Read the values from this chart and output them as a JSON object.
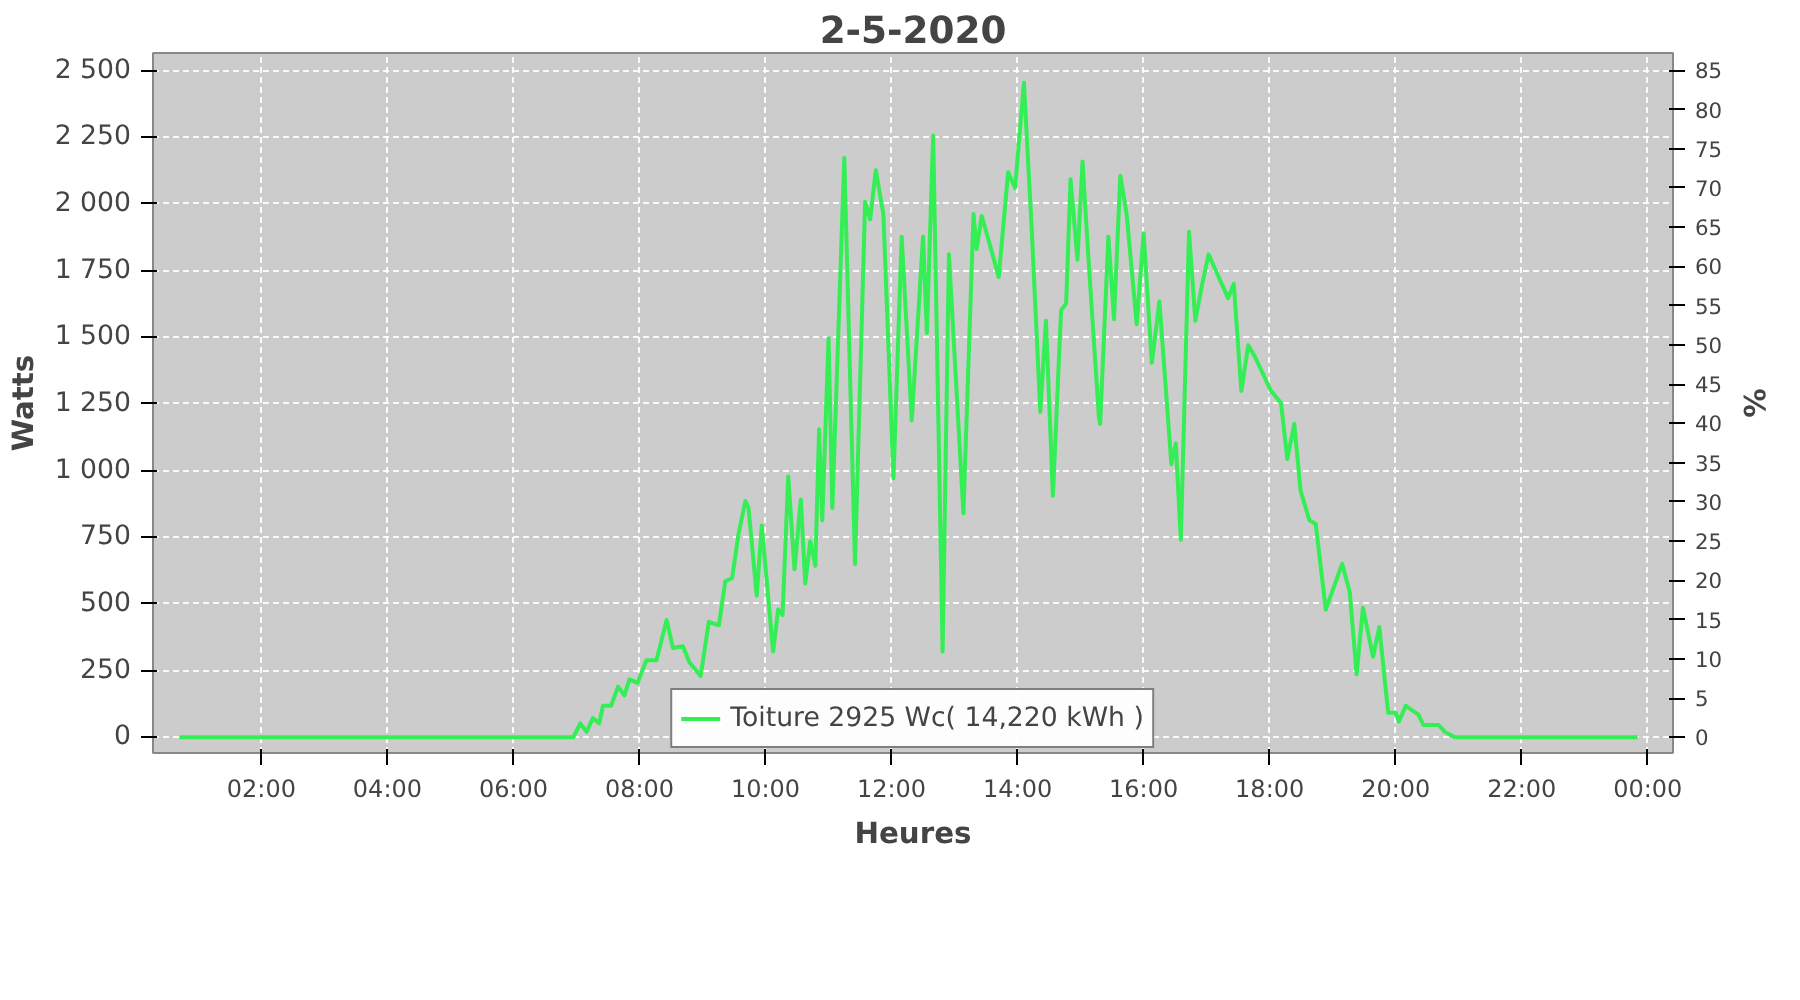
{
  "chart_data": {
    "type": "line",
    "title": "2-5-2020",
    "xlabel": "Heures",
    "ylabel": "Watts",
    "y2label": "%",
    "x": [
      0.7,
      6.95,
      7.06,
      7.16,
      7.26,
      7.36,
      7.42,
      7.55,
      7.66,
      7.76,
      7.84,
      7.97,
      8.11,
      8.27,
      8.43,
      8.53,
      8.69,
      8.79,
      8.97,
      9.1,
      9.26,
      9.36,
      9.47,
      9.57,
      9.68,
      9.73,
      9.86,
      9.94,
      10.12,
      10.2,
      10.27,
      10.36,
      10.46,
      10.56,
      10.63,
      10.71,
      10.79,
      10.85,
      10.9,
      11.0,
      11.06,
      11.25,
      11.42,
      11.58,
      11.66,
      11.75,
      11.87,
      12.03,
      12.16,
      12.32,
      12.5,
      12.56,
      12.66,
      12.81,
      12.91,
      13.14,
      13.3,
      13.35,
      13.43,
      13.54,
      13.7,
      13.85,
      13.96,
      14.1,
      14.22,
      14.36,
      14.45,
      14.56,
      14.69,
      14.77,
      14.84,
      14.95,
      15.03,
      15.12,
      15.29,
      15.31,
      15.44,
      15.53,
      15.63,
      15.73,
      15.89,
      16.0,
      16.13,
      16.25,
      16.44,
      16.51,
      16.59,
      16.72,
      16.82,
      16.93,
      17.03,
      17.19,
      17.34,
      17.43,
      17.55,
      17.66,
      17.76,
      18.02,
      18.18,
      18.28,
      18.39,
      18.49,
      18.63,
      18.73,
      18.89,
      19.15,
      19.27,
      19.38,
      19.48,
      19.64,
      19.74,
      19.88,
      20.0,
      20.05,
      20.16,
      20.36,
      20.44,
      20.68,
      20.78,
      20.94,
      23.84
    ],
    "series": [
      {
        "name": "Toiture 2925 Wc( 14,220 kWh )",
        "color": "#33ee55",
        "values": [
          0,
          0,
          52,
          20,
          72,
          52,
          118,
          118,
          190,
          157,
          217,
          204,
          289,
          289,
          440,
          335,
          341,
          282,
          230,
          433,
          420,
          584,
          597,
          761,
          886,
          860,
          531,
          794,
          322,
          479,
          459,
          978,
          630,
          892,
          577,
          735,
          643,
          1155,
          814,
          1496,
          860,
          2172,
          650,
          2008,
          1942,
          2126,
          1962,
          971,
          1877,
          1188,
          1877,
          1516,
          2257,
          322,
          1811,
          840,
          1962,
          1831,
          1955,
          1864,
          1726,
          2119,
          2060,
          2454,
          1923,
          1220,
          1562,
          906,
          1601,
          1627,
          2093,
          1791,
          2159,
          1811,
          1201,
          1175,
          1877,
          1568,
          2106,
          1962,
          1549,
          1890,
          1404,
          1634,
          1024,
          1102,
          741,
          1896,
          1562,
          1700,
          1811,
          1726,
          1647,
          1700,
          1299,
          1470,
          1430,
          1299,
          1253,
          1043,
          1175,
          925,
          814,
          800,
          479,
          650,
          545,
          236,
          486,
          302,
          413,
          92,
          92,
          59,
          118,
          85,
          46,
          46,
          20,
          0,
          0
        ]
      }
    ],
    "xlim": [
      0.28,
      24.4
    ],
    "xticks": [
      {
        "value": 2,
        "label": "02:00"
      },
      {
        "value": 4,
        "label": "04:00"
      },
      {
        "value": 6,
        "label": "06:00"
      },
      {
        "value": 8,
        "label": "08:00"
      },
      {
        "value": 10,
        "label": "10:00"
      },
      {
        "value": 12,
        "label": "12:00"
      },
      {
        "value": 14,
        "label": "14:00"
      },
      {
        "value": 16,
        "label": "16:00"
      },
      {
        "value": 18,
        "label": "18:00"
      },
      {
        "value": 20,
        "label": "20:00"
      },
      {
        "value": 22,
        "label": "22:00"
      },
      {
        "value": 24,
        "label": "00:00"
      }
    ],
    "ylim": [
      -59,
      2566
    ],
    "yticks": [
      0,
      250,
      500,
      750,
      {
        "value": 1000,
        "label": "1 000"
      },
      {
        "value": 1250,
        "label": "1 250"
      },
      {
        "value": 1500,
        "label": "1 500"
      },
      {
        "value": 1750,
        "label": "1 750"
      },
      {
        "value": 2000,
        "label": "2 000"
      },
      {
        "value": 2250,
        "label": "2 250"
      },
      {
        "value": 2500,
        "label": "2 500"
      }
    ],
    "y2lim": [
      -2.0,
      87.2
    ],
    "y2ticks": [
      0,
      5,
      10,
      15,
      20,
      25,
      30,
      35,
      40,
      45,
      50,
      55,
      60,
      65,
      70,
      75,
      80,
      85
    ],
    "grid": true,
    "legend": "bottom",
    "marker": "none",
    "line_style": "solid"
  }
}
